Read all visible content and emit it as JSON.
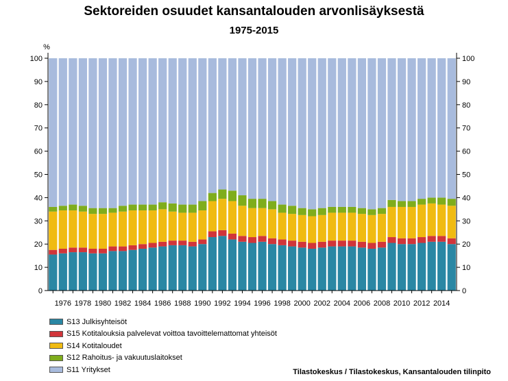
{
  "chart_data": {
    "type": "bar",
    "stacked": true,
    "title": "Sektoreiden osuudet kansantalouden arvonlisäyksestä",
    "subtitle": "1975-2015",
    "ylabel": "%",
    "ylim": [
      0,
      100
    ],
    "yticks": [
      0,
      10,
      20,
      30,
      40,
      50,
      60,
      70,
      80,
      90,
      100
    ],
    "grid": false,
    "legend_position": "bottom-left",
    "x": [
      1975,
      1976,
      1977,
      1978,
      1979,
      1980,
      1981,
      1982,
      1983,
      1984,
      1985,
      1986,
      1987,
      1988,
      1989,
      1990,
      1991,
      1992,
      1993,
      1994,
      1995,
      1996,
      1997,
      1998,
      1999,
      2000,
      2001,
      2002,
      2003,
      2004,
      2005,
      2006,
      2007,
      2008,
      2009,
      2010,
      2011,
      2012,
      2013,
      2014,
      2015
    ],
    "xtick_labels": [
      "1976",
      "1978",
      "1980",
      "1982",
      "1984",
      "1986",
      "1988",
      "1990",
      "1992",
      "1994",
      "1996",
      "1998",
      "2000",
      "2002",
      "2004",
      "2006",
      "2008",
      "2010",
      "2012",
      "2014"
    ],
    "series": [
      {
        "name": "S13 Julkisyhteisöt",
        "color": "#2a87a4",
        "values": [
          15.5,
          16.0,
          16.5,
          16.5,
          16.0,
          16.0,
          17.0,
          17.0,
          17.5,
          18.0,
          18.5,
          19.0,
          19.5,
          19.5,
          19.0,
          20.0,
          23.0,
          23.5,
          22.0,
          21.0,
          20.5,
          21.0,
          20.0,
          19.5,
          19.0,
          18.5,
          18.0,
          18.5,
          19.0,
          19.0,
          19.0,
          18.5,
          18.0,
          18.5,
          20.5,
          20.0,
          20.0,
          20.5,
          21.0,
          21.0,
          20.0
        ]
      },
      {
        "name": "S15 Kotitalouksia palvelevat voittoa tavoittelemattomat yhteisöt",
        "color": "#d1353a",
        "values": [
          2.0,
          2.0,
          2.0,
          2.0,
          2.0,
          2.0,
          2.0,
          2.0,
          2.0,
          2.0,
          2.0,
          2.0,
          2.0,
          2.0,
          2.0,
          2.0,
          2.5,
          2.5,
          2.5,
          2.5,
          2.5,
          2.5,
          2.5,
          2.5,
          2.5,
          2.5,
          2.5,
          2.5,
          2.5,
          2.5,
          2.5,
          2.5,
          2.5,
          2.5,
          2.5,
          2.5,
          2.5,
          2.5,
          2.5,
          2.5,
          2.5
        ]
      },
      {
        "name": "S14 Kotitaloudet",
        "color": "#f0bb12",
        "values": [
          16.5,
          16.5,
          16.0,
          15.5,
          15.0,
          15.0,
          14.5,
          15.0,
          15.0,
          14.5,
          14.0,
          14.0,
          12.5,
          12.0,
          12.5,
          12.5,
          13.0,
          13.5,
          14.0,
          13.0,
          12.5,
          12.0,
          12.5,
          11.5,
          11.5,
          11.5,
          11.5,
          11.5,
          12.0,
          12.0,
          12.0,
          12.0,
          12.0,
          12.0,
          13.0,
          13.5,
          13.5,
          14.0,
          14.0,
          13.5,
          14.0
        ]
      },
      {
        "name": "S12 Rahoitus- ja vakuutuslaitokset",
        "color": "#7fad1c",
        "values": [
          2.0,
          2.0,
          2.5,
          2.5,
          2.5,
          2.5,
          2.0,
          2.5,
          2.5,
          2.5,
          2.5,
          3.0,
          3.5,
          3.5,
          3.5,
          4.0,
          3.5,
          4.0,
          4.5,
          4.5,
          4.0,
          4.0,
          3.5,
          3.5,
          3.5,
          3.0,
          3.0,
          3.0,
          2.5,
          2.5,
          2.5,
          2.5,
          2.5,
          2.5,
          3.0,
          2.5,
          2.5,
          2.5,
          2.5,
          3.0,
          3.0
        ]
      },
      {
        "name": "S11 Yritykset",
        "color": "#a8bbdd",
        "values": [
          64.0,
          63.5,
          63.0,
          63.5,
          64.5,
          64.5,
          64.5,
          63.5,
          63.0,
          63.0,
          63.0,
          62.0,
          62.5,
          63.0,
          63.0,
          61.5,
          58.0,
          56.5,
          57.0,
          59.0,
          60.5,
          60.5,
          61.5,
          63.0,
          63.5,
          64.5,
          65.0,
          64.5,
          64.0,
          64.0,
          64.0,
          64.5,
          65.0,
          64.5,
          61.0,
          61.5,
          61.5,
          60.5,
          60.0,
          60.0,
          60.5
        ]
      }
    ]
  },
  "source": "Tilastokeskus / Tilastokeskus, Kansantalouden tilinpito"
}
